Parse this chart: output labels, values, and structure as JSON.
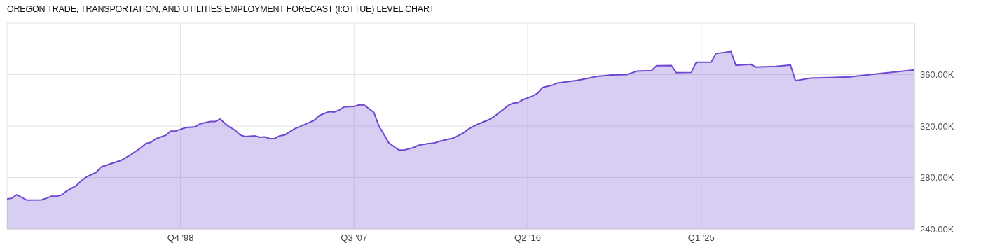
{
  "chart_data": {
    "type": "area",
    "title": "OREGON TRADE, TRANSPORTATION, AND UTILITIES EMPLOYMENT FORECAST (I:OTTUE) LEVEL CHART",
    "x": [
      "1990-01",
      "1990-04",
      "1990-07",
      "1991-01",
      "1991-10",
      "1992-04",
      "1992-07",
      "1992-10",
      "1993-01",
      "1993-07",
      "1993-10",
      "1994-01",
      "1994-07",
      "1994-10",
      "1995-01",
      "1995-10",
      "1996-04",
      "1996-10",
      "1997-01",
      "1997-04",
      "1997-07",
      "1998-01",
      "1998-04",
      "1998-07",
      "1999-01",
      "1999-07",
      "1999-10",
      "2000-04",
      "2000-07",
      "2000-10",
      "2001-01",
      "2001-04",
      "2001-07",
      "2001-10",
      "2002-01",
      "2002-07",
      "2002-10",
      "2003-01",
      "2003-04",
      "2003-07",
      "2003-10",
      "2004-01",
      "2004-07",
      "2005-04",
      "2005-07",
      "2005-10",
      "2006-04",
      "2006-07",
      "2006-10",
      "2007-01",
      "2007-07",
      "2007-10",
      "2008-01",
      "2008-07",
      "2008-10",
      "2009-01",
      "2009-04",
      "2009-10",
      "2010-01",
      "2010-07",
      "2010-10",
      "2011-04",
      "2011-07",
      "2011-10",
      "2012-04",
      "2012-07",
      "2013-01",
      "2013-04",
      "2013-07",
      "2013-10",
      "2014-04",
      "2014-07",
      "2015-01",
      "2015-04",
      "2015-07",
      "2015-10",
      "2016-01",
      "2016-07",
      "2016-10",
      "2017-01",
      "2017-07",
      "2017-10",
      "2018-10",
      "2019-04",
      "2019-10",
      "2020-07",
      "2021-04",
      "2021-07",
      "2021-10",
      "2022-07",
      "2022-10",
      "2023-07",
      "2023-10",
      "2024-07",
      "2024-10",
      "2025-07",
      "2025-10",
      "2026-07",
      "2026-10",
      "2027-07",
      "2027-10",
      "2028-10",
      "2029-07",
      "2029-10",
      "2030-07",
      "2031-10",
      "2032-07",
      "2033-07",
      "2035-10"
    ],
    "series": [
      {
        "color": "#7047d1",
        "values": [
          263300,
          264000,
          266600,
          262400,
          262600,
          265500,
          265500,
          266400,
          269500,
          273700,
          277600,
          280400,
          284000,
          288200,
          289500,
          293300,
          297800,
          303100,
          306400,
          307300,
          310100,
          312800,
          316100,
          316100,
          318800,
          319500,
          321800,
          323500,
          323500,
          325500,
          321800,
          319000,
          316800,
          313100,
          311900,
          312400,
          311300,
          311500,
          310200,
          310400,
          312400,
          313100,
          317900,
          322800,
          324600,
          328200,
          331300,
          330900,
          332400,
          334900,
          335300,
          336400,
          336400,
          330600,
          320000,
          313600,
          306900,
          301500,
          301300,
          303300,
          305100,
          306400,
          306600,
          307900,
          309800,
          310600,
          314600,
          317500,
          319700,
          321500,
          324600,
          326700,
          332700,
          335800,
          337700,
          338200,
          340400,
          343300,
          345500,
          350000,
          351800,
          353500,
          355500,
          357000,
          358600,
          359700,
          360000,
          361300,
          362700,
          363100,
          366900,
          367100,
          361500,
          361700,
          369700,
          369700,
          376400,
          377900,
          367300,
          368000,
          365900,
          366400,
          367500,
          355300,
          357300,
          357800,
          358200,
          360000,
          363700
        ]
      }
    ],
    "xlim": [
      "1990-01",
      "2035-10"
    ],
    "xticks": [
      {
        "value": "1998-10",
        "label": "Q4 '98"
      },
      {
        "value": "2007-07",
        "label": "Q3 '07"
      },
      {
        "value": "2016-04",
        "label": "Q2 '16"
      },
      {
        "value": "2025-01",
        "label": "Q1 '25"
      }
    ],
    "ylim": [
      240000,
      400000
    ],
    "yticks": [
      {
        "value": 240000,
        "label": "240.00K"
      },
      {
        "value": 280000,
        "label": "280.00K"
      },
      {
        "value": 320000,
        "label": "320.00K"
      },
      {
        "value": 360000,
        "label": "360.00K"
      }
    ],
    "grid": true,
    "legend": false
  }
}
